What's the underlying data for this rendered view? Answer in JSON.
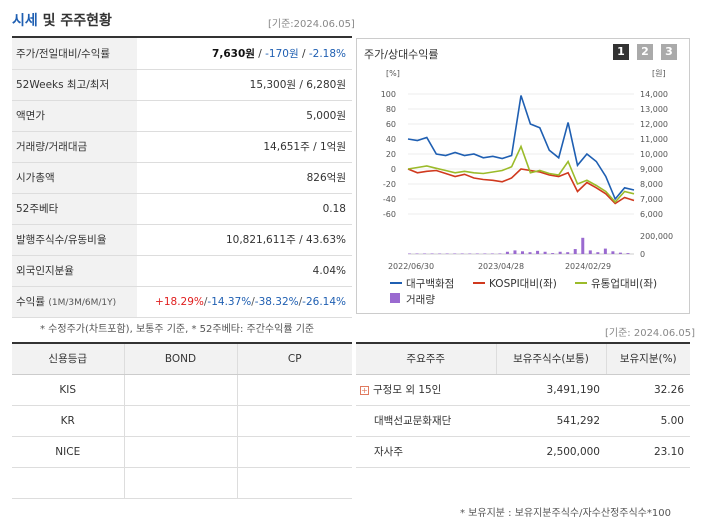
{
  "header": {
    "title_part1": "시세",
    "title_part2": " 및 주주현황",
    "date": "[기준:2024.06.05]"
  },
  "info": {
    "price_label": "주가/전일대비/수익률",
    "price": "7,630원",
    "sep1": " / ",
    "change": "-170원",
    "sep2": " / ",
    "change_pct": "-2.18%",
    "w52_label": "52Weeks 최고/최저",
    "w52_value": "15,300원 / 6,280원",
    "par_label": "액면가",
    "par_value": "5,000원",
    "volume_label": "거래량/거래대금",
    "volume_value": "14,651주 / 1억원",
    "mcap_label": "시가총액",
    "mcap_value": "826억원",
    "beta_label": "52주베타",
    "beta_value": "0.18",
    "shares_label": "발행주식수/유동비율",
    "shares_value": "10,821,611주 / 43.63%",
    "foreign_label": "외국인지분율",
    "foreign_value": "4.04%",
    "return_label": "수익률",
    "return_label_sub": "(1M/3M/6M/1Y)",
    "r1m": "+18.29%",
    "r3m": "-14.37%",
    "r6m": "-38.32%",
    "r1y": "-26.14%",
    "slash": "/"
  },
  "note1": "* 수정주가(차트포함), 보통주 기준, * 52주베타: 주간수익률 기준",
  "chart": {
    "title": "주가/상대수익률",
    "tabs": [
      "1",
      "2",
      "3"
    ],
    "left_unit": "[%]",
    "right_unit": "[원]",
    "legend": [
      {
        "label": "대구백화점",
        "color": "#1f5fb2"
      },
      {
        "label": "KOSPI대비(좌)",
        "color": "#d0391e"
      },
      {
        "label": "유통업대비(좌)",
        "color": "#9bbb2a"
      },
      {
        "label": "거래량",
        "color": "#9a6ad0"
      }
    ]
  },
  "chart_data": {
    "type": "line",
    "x_ticks": [
      "2022/06/30",
      "2023/04/28",
      "2024/02/29"
    ],
    "left_axis": {
      "ticks": [
        100,
        80,
        60,
        40,
        20,
        0,
        -20,
        -40,
        -60
      ],
      "range": [
        -60,
        100
      ]
    },
    "right_axis": {
      "ticks": [
        "14,000",
        "13,000",
        "12,000",
        "11,000",
        "10,000",
        "9,000",
        "8,000",
        "7,000",
        "6,000"
      ],
      "range": [
        6000,
        14000
      ]
    },
    "volume_axis": {
      "ticks": [
        "200,000",
        "0"
      ],
      "range": [
        0,
        200000
      ]
    },
    "series": [
      {
        "name": "대구백화점",
        "color": "#1f5fb2",
        "values": [
          40,
          38,
          42,
          20,
          18,
          22,
          18,
          20,
          15,
          17,
          14,
          18,
          98,
          60,
          55,
          25,
          15,
          62,
          5,
          20,
          10,
          -10,
          -40,
          -25,
          -28
        ]
      },
      {
        "name": "KOSPI대비(좌)",
        "color": "#d0391e",
        "values": [
          0,
          -5,
          -3,
          -2,
          -6,
          -10,
          -7,
          -12,
          -14,
          -15,
          -17,
          -12,
          0,
          -2,
          -4,
          -8,
          -10,
          -5,
          -30,
          -18,
          -25,
          -33,
          -46,
          -38,
          -42
        ]
      },
      {
        "name": "유통업대비(좌)",
        "color": "#9bbb2a",
        "values": [
          0,
          2,
          4,
          1,
          -2,
          -5,
          -3,
          -5,
          -6,
          -4,
          -2,
          3,
          30,
          -5,
          -2,
          -6,
          -8,
          10,
          -20,
          -15,
          -22,
          -30,
          -44,
          -30,
          -33
        ]
      }
    ],
    "volume": [
      2000,
      1500,
      1800,
      1200,
      1000,
      1500,
      2000,
      1800,
      3000,
      2500,
      4000,
      3500,
      6000,
      25000,
      40000,
      30000,
      20000,
      35000,
      25000,
      10000,
      25000,
      20000,
      55000,
      180000,
      40000,
      20000,
      60000,
      30000,
      15000,
      10000
    ]
  },
  "note2": "[기준: 2024.06.05]",
  "credit": {
    "headers": [
      "신용등급",
      "BOND",
      "CP"
    ],
    "rows": [
      [
        "KIS",
        "",
        ""
      ],
      [
        "KR",
        "",
        ""
      ],
      [
        "NICE",
        "",
        ""
      ],
      [
        "",
        "",
        ""
      ]
    ]
  },
  "holders": {
    "headers": [
      "주요주주",
      "보유주식수(보통)",
      "보유지분(%)"
    ],
    "rows": [
      {
        "name": "구정모 외 15인",
        "shares": "3,491,190",
        "pct": "32.26",
        "expand": "+"
      },
      {
        "name": "대백선교문화재단",
        "shares": "541,292",
        "pct": "5.00"
      },
      {
        "name": "자사주",
        "shares": "2,500,000",
        "pct": "23.10"
      }
    ]
  },
  "note3": "* 보유지분 : 보유지분주식수/자수산정주식수*100"
}
